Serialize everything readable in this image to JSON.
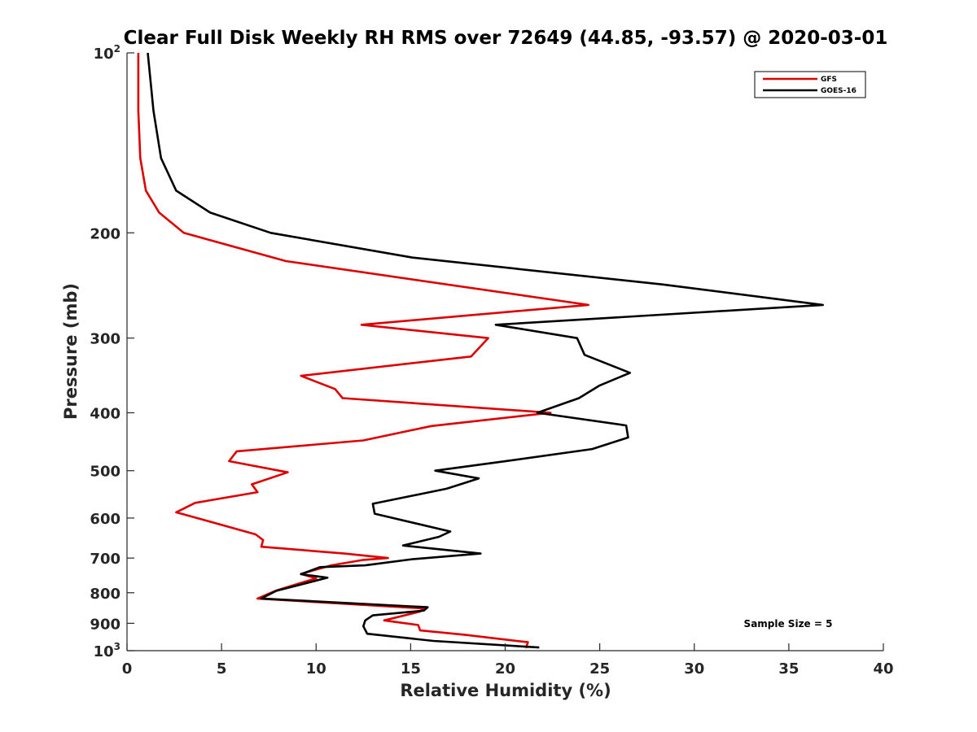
{
  "chart_data": {
    "type": "line",
    "title": "Clear Full Disk Weekly RH RMS over 72649 (44.85, -93.57) @ 2020-03-01",
    "xlabel": "Relative Humidity (%)",
    "ylabel": "Pressure (mb)",
    "xlim": [
      0,
      40
    ],
    "ylim": [
      100,
      1000
    ],
    "y_scale": "log",
    "y_reversed": true,
    "grid": false,
    "legend_position": "top-right",
    "x_ticks": [
      "0",
      "5",
      "10",
      "15",
      "20",
      "25",
      "30",
      "35",
      "40"
    ],
    "y_ticks": [
      {
        "value": 100,
        "label": "10",
        "sup": "2"
      },
      {
        "value": 200,
        "label": "200"
      },
      {
        "value": 300,
        "label": "300"
      },
      {
        "value": 400,
        "label": "400"
      },
      {
        "value": 500,
        "label": "500"
      },
      {
        "value": 600,
        "label": "600"
      },
      {
        "value": 700,
        "label": "700"
      },
      {
        "value": 800,
        "label": "800"
      },
      {
        "value": 900,
        "label": "900"
      },
      {
        "value": 1000,
        "label": "10",
        "sup": "3"
      }
    ],
    "annotation": "Sample Size = 5",
    "series": [
      {
        "name": "GFS",
        "color": "#dd0000",
        "points": [
          [
            0.6,
            100
          ],
          [
            0.6,
            125
          ],
          [
            0.7,
            150
          ],
          [
            1.0,
            170
          ],
          [
            1.7,
            185
          ],
          [
            3.0,
            200
          ],
          [
            8.4,
            223
          ],
          [
            24.4,
            264
          ],
          [
            12.4,
            285
          ],
          [
            19.1,
            300
          ],
          [
            18.2,
            322
          ],
          [
            9.2,
            347
          ],
          [
            11.0,
            365
          ],
          [
            11.4,
            378
          ],
          [
            22.4,
            400
          ],
          [
            16.1,
            421
          ],
          [
            12.5,
            445
          ],
          [
            5.8,
            464
          ],
          [
            5.4,
            482
          ],
          [
            8.5,
            503
          ],
          [
            6.6,
            527
          ],
          [
            6.9,
            543
          ],
          [
            3.6,
            566
          ],
          [
            2.6,
            587
          ],
          [
            4.2,
            606
          ],
          [
            6.8,
            639
          ],
          [
            7.2,
            653
          ],
          [
            7.1,
            670
          ],
          [
            11.5,
            688
          ],
          [
            13.8,
            700
          ],
          [
            12.5,
            705
          ],
          [
            10.8,
            720
          ],
          [
            9.2,
            744
          ],
          [
            10.0,
            757
          ],
          [
            9.4,
            767
          ],
          [
            7.9,
            793
          ],
          [
            6.9,
            818
          ],
          [
            15.7,
            850
          ],
          [
            15.5,
            860
          ],
          [
            13.6,
            890
          ],
          [
            15.4,
            906
          ],
          [
            15.5,
            925
          ],
          [
            17.9,
            941
          ],
          [
            21.2,
            968
          ],
          [
            21.1,
            990
          ]
        ]
      },
      {
        "name": "GOES-16",
        "color": "#000000",
        "points": [
          [
            1.1,
            100
          ],
          [
            1.4,
            125
          ],
          [
            1.8,
            150
          ],
          [
            2.6,
            170
          ],
          [
            4.4,
            185
          ],
          [
            7.6,
            200
          ],
          [
            15.1,
            220
          ],
          [
            28.3,
            244
          ],
          [
            36.8,
            264
          ],
          [
            19.5,
            285
          ],
          [
            23.8,
            300
          ],
          [
            24.2,
            320
          ],
          [
            26.6,
            343
          ],
          [
            25.0,
            360
          ],
          [
            23.9,
            378
          ],
          [
            21.7,
            400
          ],
          [
            26.4,
            420
          ],
          [
            26.5,
            440
          ],
          [
            24.6,
            460
          ],
          [
            19.8,
            483
          ],
          [
            16.3,
            500
          ],
          [
            18.6,
            515
          ],
          [
            16.9,
            536
          ],
          [
            13.0,
            568
          ],
          [
            13.1,
            590
          ],
          [
            17.1,
            632
          ],
          [
            16.5,
            645
          ],
          [
            14.6,
            667
          ],
          [
            18.7,
            688
          ],
          [
            15.1,
            703
          ],
          [
            12.6,
            720
          ],
          [
            10.2,
            725
          ],
          [
            9.2,
            745
          ],
          [
            10.6,
            755
          ],
          [
            7.9,
            794
          ],
          [
            7.1,
            818
          ],
          [
            15.9,
            846
          ],
          [
            15.7,
            857
          ],
          [
            13.0,
            873
          ],
          [
            12.6,
            890
          ],
          [
            12.5,
            910
          ],
          [
            12.7,
            937
          ],
          [
            16.2,
            963
          ],
          [
            21.8,
            988
          ]
        ]
      }
    ]
  }
}
